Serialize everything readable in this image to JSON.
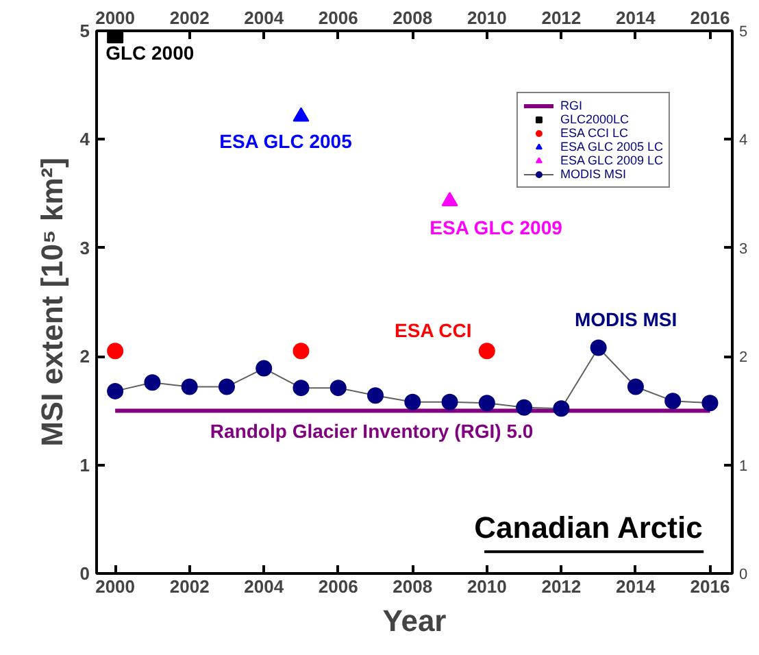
{
  "chart_data": {
    "type": "line",
    "title": "Canadian Arctic",
    "xlabel": "Year",
    "ylabel": "MSI extent [10⁵ km²]",
    "x": [
      2000,
      2001,
      2002,
      2003,
      2004,
      2005,
      2006,
      2007,
      2008,
      2009,
      2010,
      2011,
      2012,
      2013,
      2014,
      2015,
      2016
    ],
    "series": [
      {
        "name": "RGI",
        "type": "line",
        "color": "#800080",
        "marker": "none",
        "x": [
          2000,
          2016
        ],
        "values": [
          1.5,
          1.5
        ]
      },
      {
        "name": "GLC2000LC",
        "type": "scatter",
        "color": "#000000",
        "marker": "square",
        "x": [
          2000
        ],
        "values": [
          4.96
        ]
      },
      {
        "name": "ESA CCI LC",
        "type": "scatter",
        "color": "#ff0000",
        "marker": "circle",
        "x": [
          2000,
          2005,
          2010
        ],
        "values": [
          2.05,
          2.05,
          2.05
        ]
      },
      {
        "name": "ESA GLC 2005 LC",
        "type": "scatter",
        "color": "#0000ff",
        "marker": "triangle",
        "x": [
          2005
        ],
        "values": [
          4.21
        ]
      },
      {
        "name": "ESA GLC 2009 LC",
        "type": "scatter",
        "color": "#ff00ff",
        "marker": "triangle",
        "x": [
          2009
        ],
        "values": [
          3.43
        ]
      },
      {
        "name": "MODIS MSI",
        "color": "#000080",
        "marker": "circle",
        "values": [
          1.68,
          1.76,
          1.72,
          1.72,
          1.89,
          1.71,
          1.71,
          1.64,
          1.58,
          1.58,
          1.57,
          1.53,
          1.52,
          2.08,
          1.72,
          1.59,
          1.57
        ]
      }
    ],
    "annotations": [
      {
        "text": "GLC 2000",
        "x": 2000,
        "y": 4.96
      },
      {
        "text": "ESA GLC 2005",
        "x": 2005,
        "y": 4.21
      },
      {
        "text": "ESA GLC 2009",
        "x": 2009,
        "y": 3.43
      },
      {
        "text": "ESA CCI",
        "x": 2010,
        "y": 2.05
      },
      {
        "text": "MODIS MSI",
        "x": 2013,
        "y": 2.08
      },
      {
        "text": "Randolp Glacier Inventory (RGI) 5.0",
        "x": 2006.9,
        "y": 1.5
      }
    ],
    "xlim": [
      1999.5,
      2016.6
    ],
    "ylim": [
      0,
      5
    ],
    "xticks": [
      2000,
      2002,
      2004,
      2006,
      2008,
      2010,
      2012,
      2014,
      2016
    ],
    "x2lim": [
      1999.5,
      2016.6
    ],
    "x2ticks": [
      2000,
      2002,
      2004,
      2006,
      2008,
      2010,
      2012,
      2014,
      2016
    ],
    "yticks": [
      0,
      1,
      2,
      3,
      4,
      5
    ],
    "y2lim": [
      0,
      5
    ],
    "y2ticks": [
      0,
      1,
      2,
      3,
      4,
      5
    ],
    "grid": false,
    "legend": "top right"
  }
}
